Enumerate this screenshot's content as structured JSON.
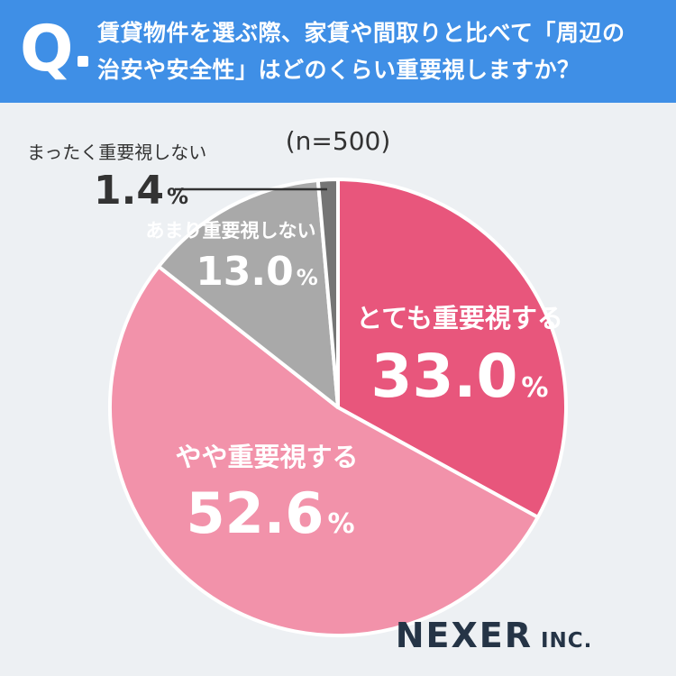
{
  "header": {
    "q_mark": "Q",
    "question_line1": "賃貸物件を選ぶ際、家賃や間取りと比べて「周辺の",
    "question_line2": "治安や安全性」はどのくらい重要視しますか？"
  },
  "sample_note": "(n=500)",
  "brand": "NEXER",
  "brand_suffix": "INC.",
  "colors": {
    "header": "#3f8fe6",
    "background": "#edf0f3",
    "slice_very": "#e8567c",
    "slice_somewhat": "#f292aa",
    "slice_notmuch": "#a9a9a9",
    "slice_notatall": "#757575",
    "brand_text": "#253446"
  },
  "chart_data": {
    "type": "pie",
    "title": "",
    "unit": "%",
    "slices": [
      {
        "label": "とても重要視する",
        "value": 33.0,
        "value_text": "33.0",
        "color": "#e8567c"
      },
      {
        "label": "やや重要視する",
        "value": 52.6,
        "value_text": "52.6",
        "color": "#f292aa"
      },
      {
        "label": "あまり重要視しない",
        "value": 13.0,
        "value_text": "13.0",
        "color": "#a9a9a9"
      },
      {
        "label": "まったく重要視しない",
        "value": 1.4,
        "value_text": "1.4",
        "color": "#757575"
      }
    ]
  }
}
